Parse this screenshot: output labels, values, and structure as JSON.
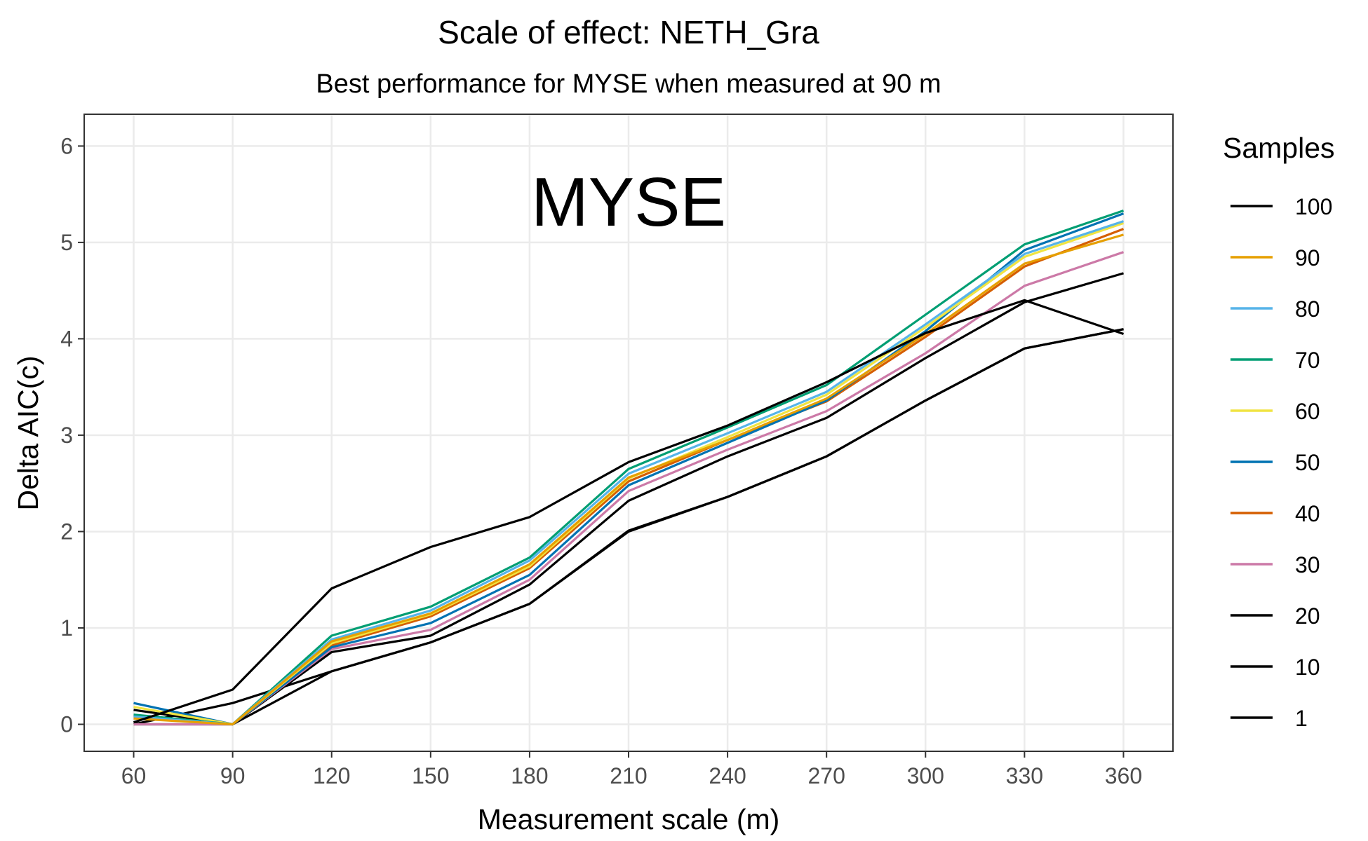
{
  "chart_data": {
    "type": "line",
    "title": "Scale of effect: NETH_Gra",
    "subtitle": "Best performance for MYSE when measured at 90 m",
    "annotation": "MYSE",
    "xlabel": "Measurement scale (m)",
    "ylabel": "Delta AIC(c)",
    "x": [
      60,
      90,
      120,
      150,
      180,
      210,
      240,
      270,
      300,
      330,
      360
    ],
    "xticks": [
      "60",
      "90",
      "120",
      "150",
      "180",
      "210",
      "240",
      "270",
      "300",
      "330",
      "360"
    ],
    "yticks": [
      "0",
      "1",
      "2",
      "3",
      "4",
      "5",
      "6"
    ],
    "xlim": [
      45,
      375
    ],
    "ylim": [
      -0.28,
      6.33
    ],
    "grid": true,
    "legend_title": "Samples",
    "legend_position": "right",
    "series": [
      {
        "name": "100",
        "color": "#000000",
        "values": [
          0.02,
          0.36,
          1.41,
          1.84,
          2.15,
          2.72,
          3.1,
          3.55,
          4.06,
          4.4,
          4.05
        ]
      },
      {
        "name": "90",
        "color": "#E69F00",
        "values": [
          0.06,
          0.0,
          0.86,
          1.15,
          1.66,
          2.56,
          2.95,
          3.38,
          4.05,
          4.78,
          5.08
        ]
      },
      {
        "name": "80",
        "color": "#56B4E9",
        "values": [
          0.08,
          0.0,
          0.88,
          1.18,
          1.7,
          2.6,
          3.02,
          3.45,
          4.15,
          4.88,
          5.22
        ]
      },
      {
        "name": "70",
        "color": "#009E73",
        "values": [
          0.1,
          0.0,
          0.92,
          1.22,
          1.73,
          2.65,
          3.08,
          3.52,
          4.25,
          4.98,
          5.33
        ]
      },
      {
        "name": "60",
        "color": "#F0E442",
        "values": [
          0.18,
          0.0,
          0.84,
          1.14,
          1.64,
          2.55,
          2.98,
          3.42,
          4.12,
          4.85,
          5.2
        ]
      },
      {
        "name": "50",
        "color": "#0072B2",
        "values": [
          0.22,
          0.0,
          0.8,
          1.05,
          1.55,
          2.48,
          2.92,
          3.36,
          4.08,
          4.92,
          5.3
        ]
      },
      {
        "name": "40",
        "color": "#D55E00",
        "values": [
          0.09,
          0.0,
          0.82,
          1.12,
          1.62,
          2.52,
          2.95,
          3.35,
          4.02,
          4.75,
          5.14
        ]
      },
      {
        "name": "30",
        "color": "#CC79A7",
        "values": [
          0.0,
          0.0,
          0.78,
          0.98,
          1.5,
          2.42,
          2.85,
          3.25,
          3.85,
          4.55,
          4.9
        ]
      },
      {
        "name": "20",
        "color": "#000000",
        "values": [
          0.15,
          0.0,
          0.75,
          0.92,
          1.45,
          2.32,
          2.78,
          3.18,
          3.8,
          4.38,
          4.68
        ]
      },
      {
        "name": "10",
        "color": "#000000",
        "values": [
          0.0,
          0.22,
          0.55,
          0.85,
          1.25,
          2.01,
          2.36,
          2.78,
          3.36,
          3.9,
          4.1
        ]
      },
      {
        "name": "1",
        "color": "#000000",
        "values": [
          0.0,
          0.0,
          0.55,
          0.85,
          1.25,
          2.0,
          2.36,
          2.78,
          3.36,
          3.9,
          4.1
        ]
      }
    ]
  }
}
